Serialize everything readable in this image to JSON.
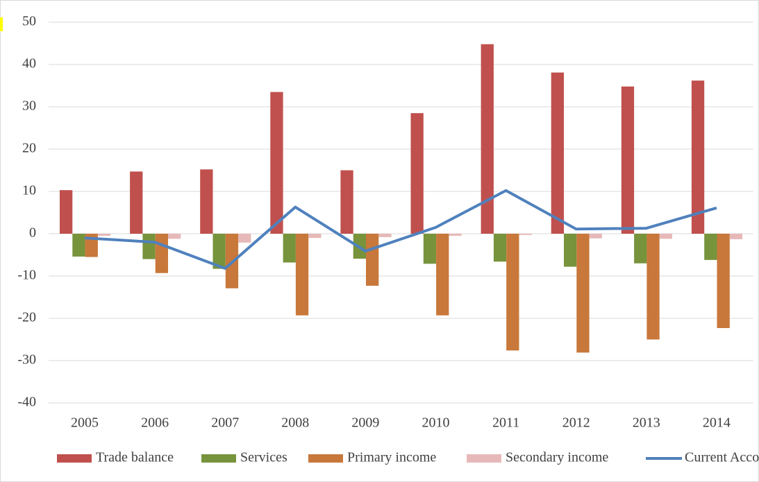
{
  "chart_data": {
    "type": "bar",
    "categories": [
      "2005",
      "2006",
      "2007",
      "2008",
      "2009",
      "2010",
      "2011",
      "2012",
      "2013",
      "2014"
    ],
    "series": [
      {
        "name": "Trade balance",
        "color": "#c0504d",
        "values": [
          10.3,
          14.7,
          15.2,
          33.5,
          15,
          28.5,
          44.8,
          38.1,
          34.8,
          36.2
        ]
      },
      {
        "name": "Services",
        "color": "#77933c",
        "values": [
          -5.4,
          -6,
          -8.3,
          -6.8,
          -5.9,
          -7.1,
          -6.6,
          -7.8,
          -7,
          -6.2
        ]
      },
      {
        "name": "Primary income",
        "color": "#c8783a",
        "values": [
          -5.5,
          -9.3,
          -12.9,
          -19.3,
          -12.3,
          -19.3,
          -27.6,
          -28.1,
          -25,
          -22.3
        ]
      },
      {
        "name": "Secondary income",
        "color": "#e6b9b8",
        "values": [
          -0.5,
          -1.2,
          -2.1,
          -1,
          -0.8,
          -0.5,
          -0.3,
          -1.1,
          -1.2,
          -1.3
        ]
      },
      {
        "name": "Current Account",
        "color": "#4f81bd",
        "type": "line",
        "values": [
          -1,
          -2,
          -8.2,
          6.3,
          -4.1,
          1.5,
          10.2,
          1.1,
          1.3,
          6.1
        ]
      }
    ],
    "ylim": [
      -40,
      50
    ],
    "yticks": [
      -40,
      -30,
      -20,
      -10,
      0,
      10,
      20,
      30,
      40,
      50
    ],
    "grid": true,
    "legend": "bottom"
  }
}
